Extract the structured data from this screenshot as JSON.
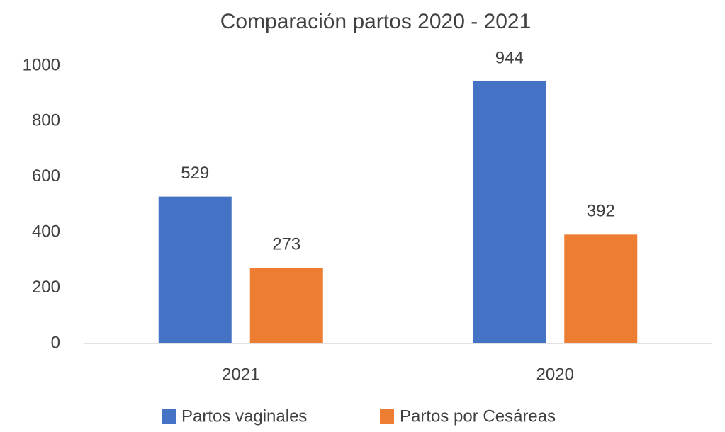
{
  "chart_data": {
    "type": "bar",
    "title": "Comparación partos 2020 - 2021",
    "categories": [
      "2021",
      "2020"
    ],
    "series": [
      {
        "name": "Partos vaginales",
        "color": "#4472c4",
        "values": [
          529,
          944
        ]
      },
      {
        "name": "Partos por Cesáreas",
        "color": "#ed7d31",
        "values": [
          273,
          392
        ]
      }
    ],
    "ylim": [
      0,
      1000
    ],
    "yticks": [
      0,
      200,
      400,
      600,
      800,
      1000
    ],
    "legend": "bottom"
  }
}
